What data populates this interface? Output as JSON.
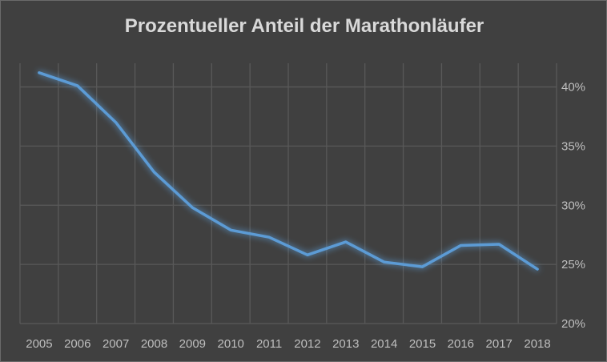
{
  "chart_data": {
    "type": "line",
    "title": "Prozentueller Anteil der Marathonläufer",
    "xlabel": "",
    "ylabel": "",
    "categories": [
      "2005",
      "2006",
      "2007",
      "2008",
      "2009",
      "2010",
      "2011",
      "2012",
      "2013",
      "2014",
      "2015",
      "2016",
      "2017",
      "2018"
    ],
    "series": [
      {
        "name": "Anteil",
        "values": [
          41.2,
          40.1,
          37.0,
          32.8,
          29.8,
          27.9,
          27.3,
          25.8,
          26.9,
          25.2,
          24.8,
          26.6,
          26.7,
          24.6
        ]
      }
    ],
    "ylim": [
      20,
      42
    ],
    "yticks": [
      20,
      25,
      30,
      35,
      40
    ],
    "ytick_labels": [
      "20%",
      "25%",
      "30%",
      "35%",
      "40%"
    ],
    "y_axis_side": "right",
    "grid": true,
    "legend": "none",
    "colors": {
      "line": "#5b9bd5",
      "grid": "#595959",
      "background": "#404040"
    }
  }
}
